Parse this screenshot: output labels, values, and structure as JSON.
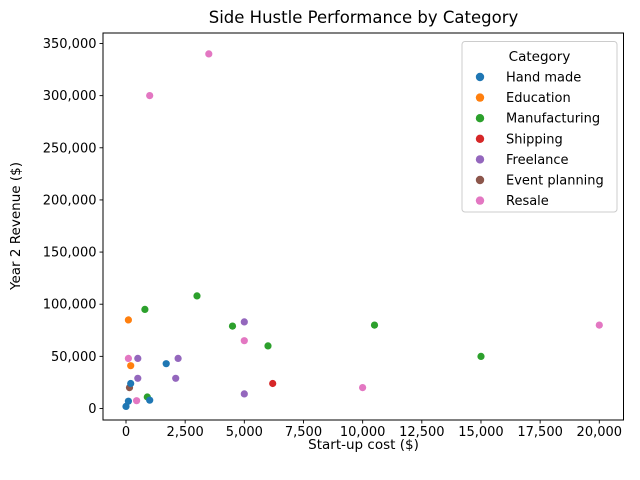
{
  "figure": {
    "title": "Side Hustle Performance by Category"
  },
  "chart_data": {
    "type": "scatter",
    "title": "Side Hustle Performance by Category",
    "xlabel": "Start-up cost ($)",
    "ylabel": "Year 2 Revenue ($)",
    "xlim": [
      -1000,
      21000
    ],
    "ylim": [
      -11000,
      360000
    ],
    "x_ticks": [
      0,
      2500,
      5000,
      7500,
      10000,
      12500,
      15000,
      17500,
      20000
    ],
    "y_ticks": [
      0,
      50000,
      100000,
      150000,
      200000,
      250000,
      300000,
      350000
    ],
    "grid": false,
    "legend": {
      "title": "Category",
      "position": "upper right"
    },
    "series": [
      {
        "name": "Hand made",
        "color": "#1f77b4",
        "points": [
          [
            1700,
            43000
          ],
          [
            200,
            24000
          ],
          [
            1000,
            8000
          ],
          [
            100,
            7000
          ],
          [
            0,
            2000
          ]
        ]
      },
      {
        "name": "Education",
        "color": "#ff7f0e",
        "points": [
          [
            100,
            85000
          ],
          [
            200,
            41000
          ]
        ]
      },
      {
        "name": "Manufacturing",
        "color": "#2ca02c",
        "points": [
          [
            3000,
            108000
          ],
          [
            800,
            95000
          ],
          [
            4500,
            79000
          ],
          [
            10500,
            80000
          ],
          [
            6000,
            60000
          ],
          [
            15000,
            50000
          ],
          [
            900,
            11000
          ]
        ]
      },
      {
        "name": "Shipping",
        "color": "#d62728",
        "points": [
          [
            6200,
            24000
          ]
        ]
      },
      {
        "name": "Freelance",
        "color": "#9467bd",
        "points": [
          [
            5000,
            83000
          ],
          [
            500,
            48000
          ],
          [
            2200,
            48000
          ],
          [
            500,
            29000
          ],
          [
            2100,
            29000
          ],
          [
            5000,
            14000
          ]
        ]
      },
      {
        "name": "Event planning",
        "color": "#8c564b",
        "points": [
          [
            150,
            20000
          ]
        ]
      },
      {
        "name": "Resale",
        "color": "#e377c2",
        "points": [
          [
            3500,
            340000
          ],
          [
            1000,
            300000
          ],
          [
            20000,
            80000
          ],
          [
            5000,
            65000
          ],
          [
            100,
            48000
          ],
          [
            10000,
            20000
          ],
          [
            450,
            7500
          ]
        ]
      }
    ]
  }
}
